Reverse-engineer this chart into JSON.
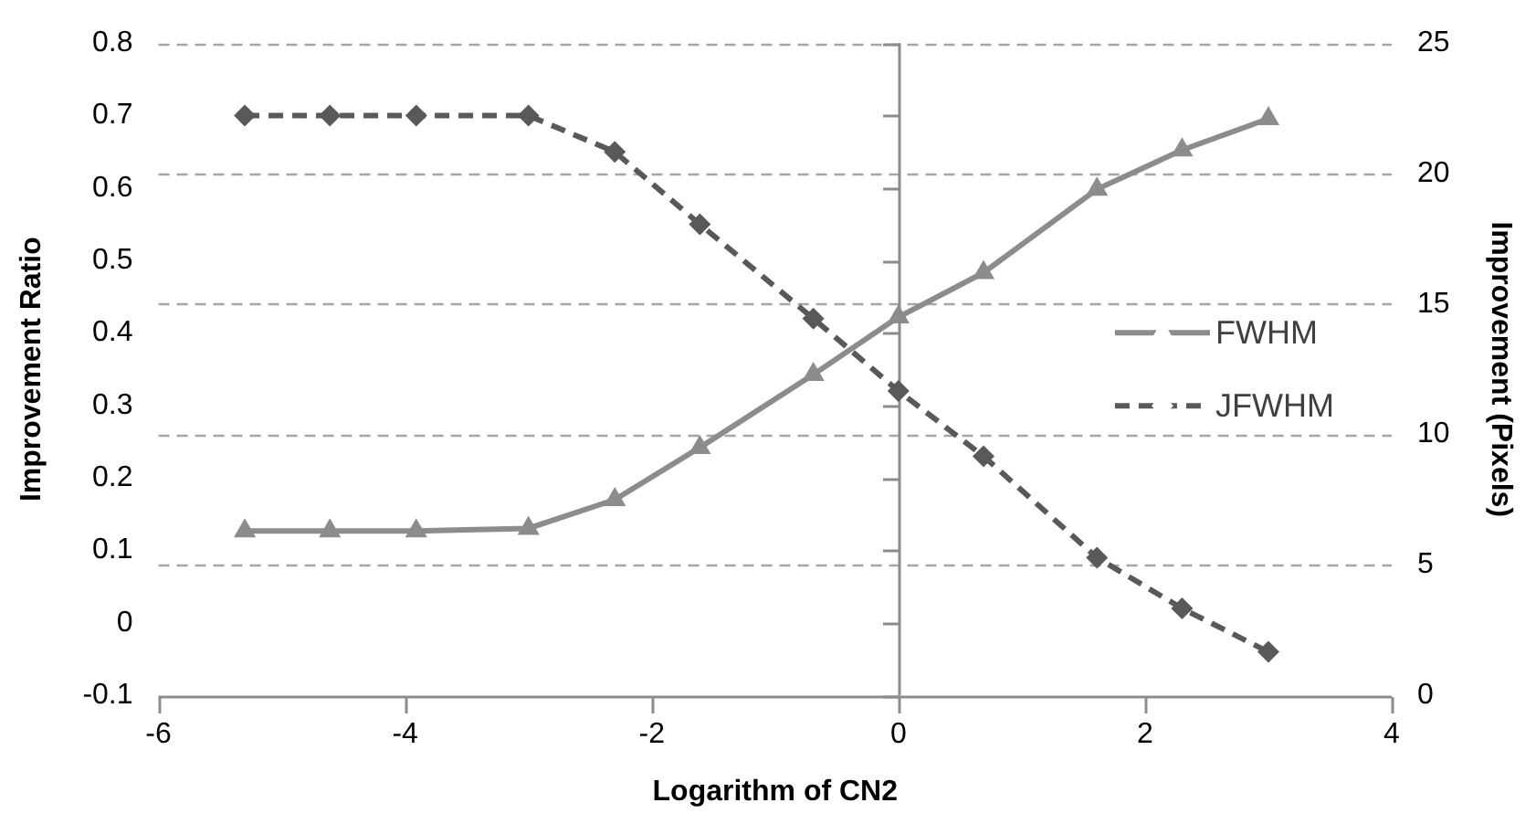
{
  "chart_data": {
    "type": "line",
    "xlabel": "Logarithm of CN2",
    "ylabel": "Improvement Ratio",
    "y2label": "Improvement (Pixels)",
    "x": [
      -5.3,
      -4.61,
      -3.91,
      -3.0,
      -2.3,
      -1.61,
      -0.69,
      0,
      0.69,
      1.61,
      2.3,
      3.0
    ],
    "series": [
      {
        "name": "FWHM",
        "color": "#8c8c8c",
        "axis": "y2",
        "marker": "triangle",
        "line_style": "solid",
        "values": [
          6.3,
          6.3,
          6.3,
          6.4,
          7.5,
          9.5,
          12.3,
          14.5,
          16.2,
          19.4,
          20.9,
          22.1
        ]
      },
      {
        "name": "JFWHM",
        "color": "#595959",
        "axis": "y",
        "marker": "diamond",
        "line_style": "dashed",
        "values": [
          0.7,
          0.7,
          0.7,
          0.7,
          0.65,
          0.55,
          0.42,
          0.32,
          0.23,
          0.09,
          0.02,
          -0.04
        ]
      }
    ],
    "xlim": [
      -6,
      4
    ],
    "xticks": [
      -6,
      -4,
      -2,
      0,
      2,
      4
    ],
    "ylim": [
      -0.1,
      0.8
    ],
    "yticks": [
      -0.1,
      0,
      0.1,
      0.2,
      0.3,
      0.4,
      0.5,
      0.6,
      0.7,
      0.8
    ],
    "y2lim": [
      0,
      25
    ],
    "y2ticks": [
      0,
      5,
      10,
      15,
      20,
      25
    ],
    "ref_lines": [
      {
        "axis": "x",
        "value": 0,
        "color": "#8c8c8c"
      }
    ],
    "grid": "y2",
    "legend": "right"
  }
}
